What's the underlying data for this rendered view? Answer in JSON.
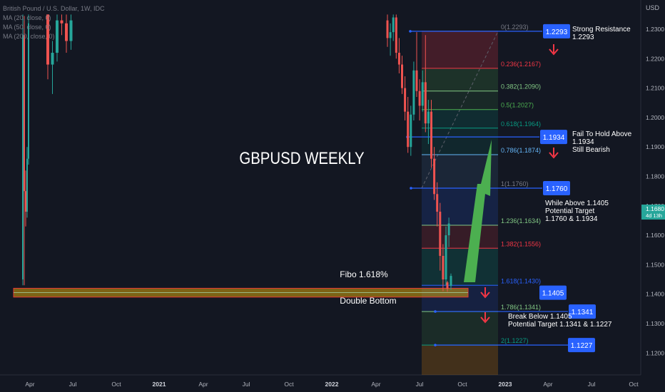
{
  "header": {
    "symbol_line": "British Pound / U.S. Dollar, 1W, IDC",
    "indicators": [
      "MA (20, close, 0)",
      "MA (50, close, 0)",
      "MA (200, close, 0)"
    ]
  },
  "chart_data": {
    "type": "candlestick",
    "title": "GBPUSD WEEKLY",
    "currency_label": "USD",
    "current_price": {
      "value": "1.1680",
      "countdown": "4d 13h",
      "y": 1.168
    },
    "ylim": [
      1.118,
      1.2345
    ],
    "y_ticks": [
      {
        "label": "1.2300",
        "value": 1.23
      },
      {
        "label": "1.2200",
        "value": 1.22
      },
      {
        "label": "1.2100",
        "value": 1.21
      },
      {
        "label": "1.2000",
        "value": 1.2
      },
      {
        "label": "1.1900",
        "value": 1.19
      },
      {
        "label": "1.1800",
        "value": 1.18
      },
      {
        "label": "1.1700",
        "value": 1.17
      },
      {
        "label": "1.1600",
        "value": 1.16
      },
      {
        "label": "1.1500",
        "value": 1.15
      },
      {
        "label": "1.1400",
        "value": 1.14
      },
      {
        "label": "1.1300",
        "value": 1.13
      },
      {
        "label": "1.1200",
        "value": 1.12
      }
    ],
    "x_ticks": [
      "Apr",
      "Jul",
      "Oct",
      "2021",
      "Apr",
      "Jul",
      "Oct",
      "2022",
      "Apr",
      "Jul",
      "Oct",
      "2023",
      "Apr",
      "Jul",
      "Oct"
    ],
    "x_tick_bold": [
      false,
      false,
      false,
      true,
      false,
      false,
      false,
      true,
      false,
      false,
      false,
      true,
      false,
      false,
      false
    ],
    "colors": {
      "up": "#26a69a",
      "down": "#ef5350",
      "blue_label": "#2962ff",
      "green_arrow": "#4caf50",
      "red_arrow": "#f23645",
      "text": "#d1d4dc",
      "axis_text": "#b2b5be"
    },
    "fib_levels": [
      {
        "ratio": "0",
        "price": "1.2293",
        "y": 1.2293,
        "color": "#787b86"
      },
      {
        "ratio": "0.236",
        "price": "1.2167",
        "y": 1.2167,
        "color": "#f23645"
      },
      {
        "ratio": "0.382",
        "price": "1.2090",
        "y": 1.209,
        "color": "#81c784"
      },
      {
        "ratio": "0.5",
        "price": "1.2027",
        "y": 1.2027,
        "color": "#4caf50"
      },
      {
        "ratio": "0.618",
        "price": "1.1964",
        "y": 1.1964,
        "color": "#089981"
      },
      {
        "ratio": "0.786",
        "price": "1.1874",
        "y": 1.1874,
        "color": "#64b5f6"
      },
      {
        "ratio": "1",
        "price": "1.1760",
        "y": 1.176,
        "color": "#787b86"
      },
      {
        "ratio": "1.236",
        "price": "1.1634",
        "y": 1.1634,
        "color": "#81c784"
      },
      {
        "ratio": "1.382",
        "price": "1.1556",
        "y": 1.1556,
        "color": "#f23645"
      },
      {
        "ratio": "1.618",
        "price": "1.1430",
        "y": 1.143,
        "color": "#2962ff"
      },
      {
        "ratio": "1.786",
        "price": "1.1341",
        "y": 1.1341,
        "color": "#81c784"
      },
      {
        "ratio": "2",
        "price": "1.1227",
        "y": 1.1227,
        "color": "#089981"
      }
    ],
    "price_labels": [
      {
        "text": "1.2293",
        "y": 1.2293
      },
      {
        "text": "1.1934",
        "y": 1.1934
      },
      {
        "text": "1.1760",
        "y": 1.176
      },
      {
        "text": "1.1405",
        "y": 1.1405
      },
      {
        "text": "1.1341",
        "y": 1.1341
      },
      {
        "text": "1.1227",
        "y": 1.1227
      }
    ],
    "annotations": [
      {
        "lines": [
          "Strong Resistance",
          "1.2293"
        ]
      },
      {
        "lines": [
          "Fail To Hold Above",
          "1.1934",
          "Still Bearish"
        ]
      },
      {
        "lines": [
          "While Above 1.1405",
          "Potential Target",
          "1.1760 & 1.1934"
        ]
      },
      {
        "lines": [
          "Break Below 1.1405",
          "Potential Target 1.1341 & 1.1227"
        ]
      },
      {
        "lines": [
          "Fibo 1.618%"
        ]
      },
      {
        "lines": [
          "Double Bottom"
        ]
      }
    ],
    "support_zone": [
      1.139,
      1.142
    ],
    "candles_left": [
      [
        1.145,
        1.235,
        1.143,
        1.228
      ],
      [
        1.228,
        1.232,
        1.17,
        1.175
      ],
      [
        1.175,
        1.182,
        1.163,
        1.168
      ],
      [
        1.168,
        1.19,
        1.166,
        1.186
      ],
      [
        1.186,
        1.235,
        1.184,
        1.232
      ]
    ],
    "candles_left2": [
      [
        1.235,
        1.235,
        1.213,
        1.218
      ],
      [
        1.218,
        1.226,
        1.208,
        1.222
      ],
      [
        1.222,
        1.235,
        1.219,
        1.233
      ],
      [
        1.233,
        1.235,
        1.228,
        1.232
      ],
      [
        1.232,
        1.235,
        1.222,
        1.226
      ],
      [
        1.226,
        1.235,
        1.223,
        1.233
      ]
    ],
    "candles_mid": [
      [
        1.233,
        1.235,
        1.224,
        1.227
      ],
      [
        1.227,
        1.232,
        1.221,
        1.229
      ],
      [
        1.229,
        1.235,
        1.226,
        1.234
      ],
      [
        1.234,
        1.235,
        1.22,
        1.222
      ],
      [
        1.222,
        1.227,
        1.215,
        1.218
      ],
      [
        1.218,
        1.221,
        1.208,
        1.21
      ],
      [
        1.21,
        1.214,
        1.199,
        1.202
      ],
      [
        1.202,
        1.207,
        1.188,
        1.19
      ],
      [
        1.19,
        1.204,
        1.187,
        1.201
      ],
      [
        1.201,
        1.219,
        1.199,
        1.216
      ],
      [
        1.216,
        1.229,
        1.207,
        1.209
      ],
      [
        1.209,
        1.213,
        1.199,
        1.204
      ],
      [
        1.204,
        1.216,
        1.202,
        1.212
      ],
      [
        1.212,
        1.228,
        1.195,
        1.198
      ],
      [
        1.198,
        1.206,
        1.191,
        1.202
      ],
      [
        1.202,
        1.206,
        1.183,
        1.186
      ],
      [
        1.186,
        1.19,
        1.172,
        1.174
      ],
      [
        1.174,
        1.178,
        1.163,
        1.168
      ],
      [
        1.168,
        1.171,
        1.148,
        1.153
      ],
      [
        1.153,
        1.157,
        1.141,
        1.145
      ],
      [
        1.145,
        1.163,
        1.143,
        1.16
      ],
      [
        1.16,
        1.166,
        1.156,
        1.164
      ]
    ]
  }
}
